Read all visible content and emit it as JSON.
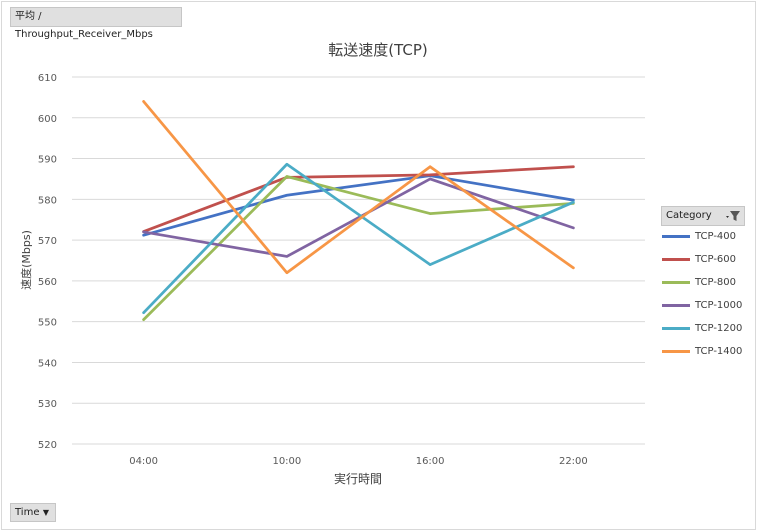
{
  "pivot": {
    "value_field": "平均 / Throughput_Receiver_Mbps",
    "axis_field": "Time",
    "axis_field_icon": "dropdown-arrow-icon",
    "legend_field": "Category",
    "legend_field_icon": "filter-icon"
  },
  "chart_data": {
    "type": "line",
    "title": "転送速度(TCP)",
    "xlabel": "実行時間",
    "ylabel": "速度(Mbps)",
    "categories": [
      "04:00",
      "10:00",
      "16:00",
      "22:00"
    ],
    "ylim": [
      520,
      610
    ],
    "yticks": [
      520,
      530,
      540,
      550,
      560,
      570,
      580,
      590,
      600,
      610
    ],
    "grid": true,
    "legend_placement": "right",
    "series": [
      {
        "name": "TCP-400",
        "color": "#4472c4",
        "values": [
          571.2,
          581.0,
          585.8,
          579.8
        ]
      },
      {
        "name": "TCP-600",
        "color": "#c0504d",
        "values": [
          572.1,
          585.4,
          586.0,
          588.0
        ]
      },
      {
        "name": "TCP-800",
        "color": "#9bbb59",
        "values": [
          550.5,
          585.6,
          576.5,
          579.0
        ]
      },
      {
        "name": "TCP-1000",
        "color": "#8064a2",
        "values": [
          572.0,
          566.0,
          585.0,
          573.0
        ]
      },
      {
        "name": "TCP-1200",
        "color": "#4bacc6",
        "values": [
          552.2,
          588.6,
          564.0,
          579.3
        ]
      },
      {
        "name": "TCP-1400",
        "color": "#f79646",
        "values": [
          604.0,
          562.0,
          588.0,
          563.2
        ]
      }
    ]
  }
}
